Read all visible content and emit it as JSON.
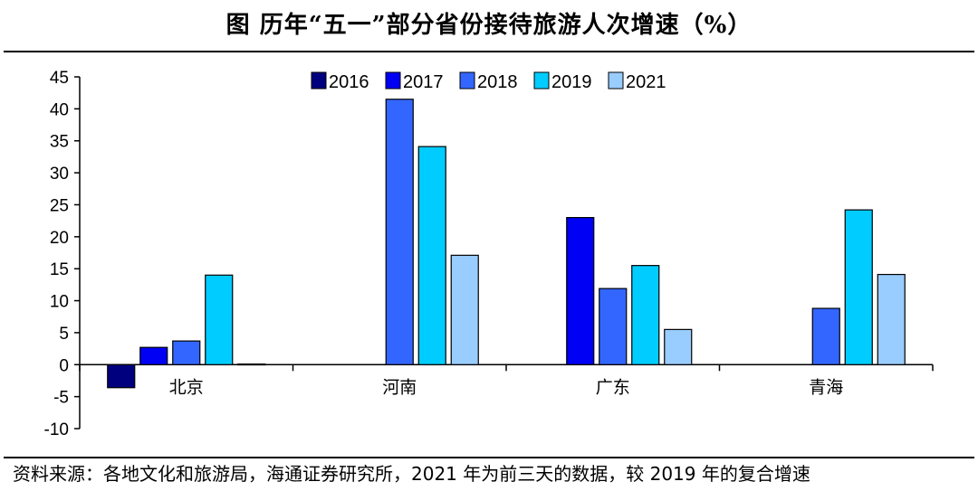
{
  "chart_data": {
    "type": "bar",
    "title": "图  历年“五一”部分省份接待旅游人次增速（%）",
    "categories": [
      "北京",
      "河南",
      "广东",
      "青海"
    ],
    "series": [
      {
        "name": "2016",
        "color": "#00007F",
        "values": [
          -3.6,
          null,
          null,
          null
        ]
      },
      {
        "name": "2017",
        "color": "#0000F5",
        "values": [
          2.7,
          null,
          23.0,
          null
        ]
      },
      {
        "name": "2018",
        "color": "#3366FF",
        "values": [
          3.7,
          41.5,
          11.9,
          8.8
        ]
      },
      {
        "name": "2019",
        "color": "#00CCFF",
        "values": [
          14.0,
          34.1,
          15.5,
          24.2
        ]
      },
      {
        "name": "2021",
        "color": "#99CCFF",
        "values": [
          0.1,
          17.1,
          5.5,
          14.1
        ]
      }
    ],
    "ylim": [
      -10,
      45
    ],
    "yticks": [
      "45",
      "40",
      "35",
      "30",
      "25",
      "20",
      "15",
      "10",
      "5",
      "0",
      "-5",
      "-10"
    ],
    "ytick_values": [
      45,
      40,
      35,
      30,
      25,
      20,
      15,
      10,
      5,
      0,
      -5,
      -10
    ],
    "legend_position": "top-center",
    "grid": false,
    "xlabel": "",
    "ylabel": ""
  },
  "source": "资料来源：各地文化和旅游局，海通证券研究所，2021 年为前三天的数据，较 2019 年的复合增速"
}
